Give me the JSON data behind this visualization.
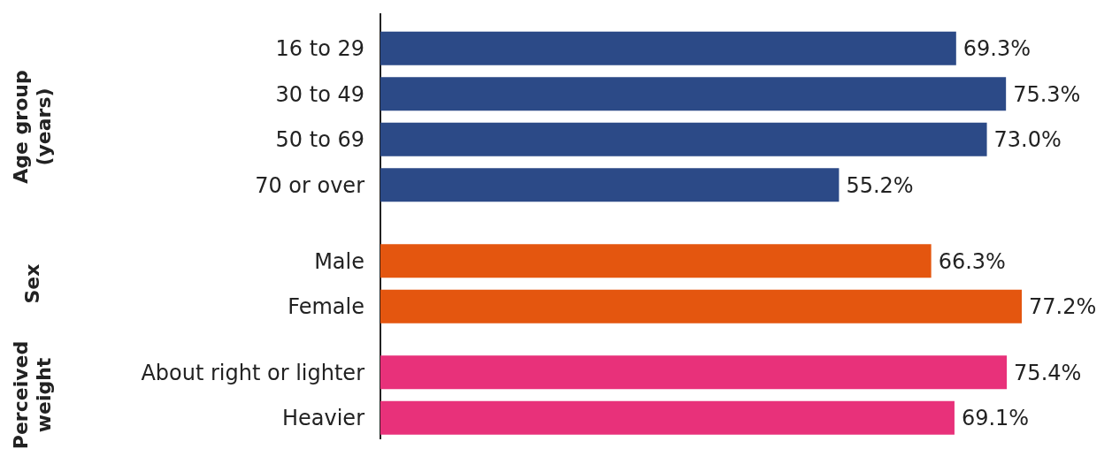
{
  "chart_data": [
    {
      "type": "bar",
      "orientation": "horizontal",
      "ylabel": "Age group (years)",
      "categories": [
        "16 to 29",
        "30 to 49",
        "50 to 69",
        "70 or over"
      ],
      "values": [
        69.3,
        75.3,
        73.0,
        55.2
      ],
      "color": "#2c4a87",
      "value_labels": [
        "69.3%",
        "75.3%",
        "73.0%",
        "55.2%"
      ]
    },
    {
      "type": "bar",
      "orientation": "horizontal",
      "ylabel": "Sex",
      "categories": [
        "Male",
        "Female"
      ],
      "values": [
        66.3,
        77.2
      ],
      "color": "#e4560f",
      "value_labels": [
        "66.3%",
        "77.2%"
      ]
    },
    {
      "type": "bar",
      "orientation": "horizontal",
      "ylabel": "Perceived weight",
      "categories": [
        "About right or lighter",
        "Heavier"
      ],
      "values": [
        75.4,
        69.1
      ],
      "color": "#e8317a",
      "value_labels": [
        "75.4%",
        "69.1%"
      ]
    }
  ]
}
